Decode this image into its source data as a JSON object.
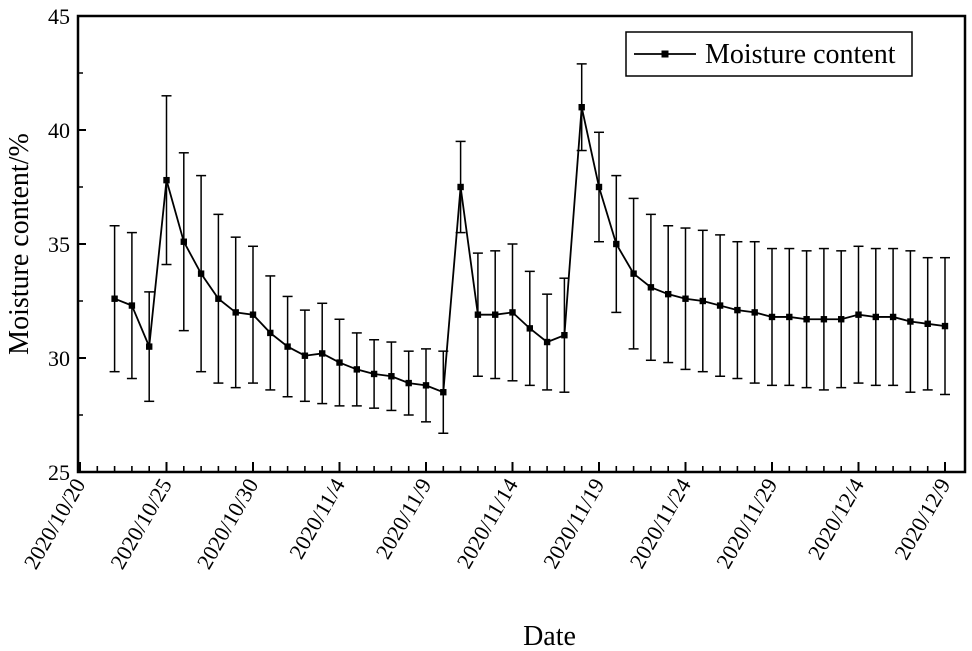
{
  "chart_data": {
    "type": "line",
    "title": "",
    "xlabel": "Date",
    "ylabel": "Moisture content/%",
    "ylim": [
      25,
      45
    ],
    "yticks": [
      "25",
      "30",
      "35",
      "40",
      "45"
    ],
    "xlim": [
      "2020/10/20",
      "2020/12/9"
    ],
    "xticks": [
      "2020/10/20",
      "2020/10/25",
      "2020/10/30",
      "2020/11/4",
      "2020/11/9",
      "2020/11/14",
      "2020/11/19",
      "2020/11/24",
      "2020/11/29",
      "2020/12/4",
      "2020/12/9"
    ],
    "grid": false,
    "legend": {
      "position": "top-right",
      "entries": [
        "Moisture content"
      ]
    },
    "series": [
      {
        "name": "Moisture content",
        "color": "#000000",
        "marker": "square",
        "x": [
          "2020/10/22",
          "2020/10/23",
          "2020/10/24",
          "2020/10/25",
          "2020/10/26",
          "2020/10/27",
          "2020/10/28",
          "2020/10/29",
          "2020/10/30",
          "2020/10/31",
          "2020/11/1",
          "2020/11/2",
          "2020/11/3",
          "2020/11/4",
          "2020/11/5",
          "2020/11/6",
          "2020/11/7",
          "2020/11/8",
          "2020/11/9",
          "2020/11/10",
          "2020/11/11",
          "2020/11/12",
          "2020/11/13",
          "2020/11/14",
          "2020/11/15",
          "2020/11/16",
          "2020/11/17",
          "2020/11/18",
          "2020/11/19",
          "2020/11/20",
          "2020/11/21",
          "2020/11/22",
          "2020/11/23",
          "2020/11/24",
          "2020/11/25",
          "2020/11/26",
          "2020/11/27",
          "2020/11/28",
          "2020/11/29",
          "2020/11/30",
          "2020/12/1",
          "2020/12/2",
          "2020/12/3",
          "2020/12/4",
          "2020/12/5",
          "2020/12/6",
          "2020/12/7",
          "2020/12/8",
          "2020/12/9"
        ],
        "y": [
          32.6,
          32.3,
          30.5,
          37.8,
          35.1,
          33.7,
          32.6,
          32.0,
          31.9,
          31.1,
          30.5,
          30.1,
          30.2,
          29.8,
          29.5,
          29.3,
          29.2,
          28.9,
          28.8,
          28.5,
          37.5,
          31.9,
          31.9,
          32.0,
          31.3,
          30.7,
          31.0,
          41.0,
          37.5,
          35.0,
          33.7,
          33.1,
          32.8,
          32.6,
          32.5,
          32.3,
          32.1,
          32.0,
          31.8,
          31.8,
          31.7,
          31.7,
          31.7,
          31.9,
          31.8,
          31.8,
          31.6,
          31.5,
          31.4
        ],
        "err_upper": [
          35.8,
          35.5,
          32.9,
          41.5,
          39.0,
          38.0,
          36.3,
          35.3,
          34.9,
          33.6,
          32.7,
          32.1,
          32.4,
          31.7,
          31.1,
          30.8,
          30.7,
          30.3,
          30.4,
          30.3,
          39.5,
          34.6,
          34.7,
          35.0,
          33.8,
          32.8,
          33.5,
          42.9,
          39.9,
          38.0,
          37.0,
          36.3,
          35.8,
          35.7,
          35.6,
          35.4,
          35.1,
          35.1,
          34.8,
          34.8,
          34.7,
          34.8,
          34.7,
          34.9,
          34.8,
          34.8,
          34.7,
          34.4,
          34.4
        ],
        "err_lower": [
          29.4,
          29.1,
          28.1,
          34.1,
          31.2,
          29.4,
          28.9,
          28.7,
          28.9,
          28.6,
          28.3,
          28.1,
          28.0,
          27.9,
          27.9,
          27.8,
          27.7,
          27.5,
          27.2,
          26.7,
          35.5,
          29.2,
          29.1,
          29.0,
          28.8,
          28.6,
          28.5,
          39.1,
          35.1,
          32.0,
          30.4,
          29.9,
          29.8,
          29.5,
          29.4,
          29.2,
          29.1,
          28.9,
          28.8,
          28.8,
          28.7,
          28.6,
          28.7,
          28.9,
          28.8,
          28.8,
          28.5,
          28.6,
          28.4
        ]
      }
    ]
  }
}
